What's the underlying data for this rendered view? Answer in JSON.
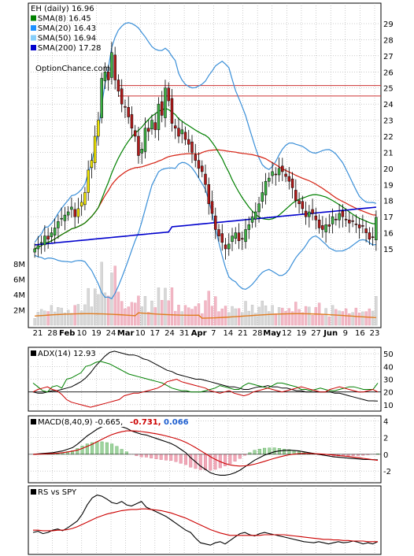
{
  "chart_data": [
    {
      "type": "candlestick",
      "title": "EH (daily) 16.96",
      "watermark": "OptionChance.com",
      "grid": true,
      "legend_position": "top-left",
      "ylim": [
        14,
        30
      ],
      "yticks": [
        "15",
        "16",
        "17",
        "18",
        "19",
        "20",
        "21",
        "22",
        "23",
        "24",
        "25",
        "26",
        "27",
        "28",
        "29"
      ],
      "xticks": [
        "21",
        "28",
        "Feb",
        "10",
        "19",
        "24",
        "Mar",
        "10",
        "17",
        "24",
        "31",
        "Apr",
        "7",
        "14",
        "21",
        "28",
        "May",
        "12",
        "19",
        "27",
        "Jun",
        "9",
        "16",
        "23"
      ],
      "reference_lines": [
        25.15,
        24.5
      ],
      "legend": [
        {
          "label": "EH (daily) 16.96",
          "color": "#000000"
        },
        {
          "label": "SMA(8) 16.45",
          "color": "#008000"
        },
        {
          "label": "SMA(20) 16.43",
          "color": "#1e90ff"
        },
        {
          "label": "SMA(50) 16.94",
          "color": "#87cefa"
        },
        {
          "label": "SMA(200) 17.28",
          "color": "#0000cd"
        }
      ],
      "close_approx": [
        15.0,
        15.2,
        15.4,
        15.8,
        15.6,
        16.0,
        16.3,
        16.7,
        16.9,
        17.1,
        17.3,
        17.6,
        17.0,
        17.5,
        17.9,
        18.5,
        19.9,
        20.5,
        22.0,
        23.0,
        25.6,
        26.0,
        25.5,
        27.2,
        25.5,
        24.8,
        24.0,
        23.8,
        23.2,
        22.5,
        22.0,
        20.8,
        21.2,
        22.5,
        22.3,
        23.0,
        22.4,
        24.0,
        23.3,
        25.0,
        24.2,
        22.8,
        22.5,
        22.0,
        22.4,
        21.8,
        21.5,
        21.0,
        20.5,
        20.0,
        19.8,
        19.0,
        17.8,
        17.2,
        16.2,
        15.8,
        15.4,
        15.0,
        15.3,
        15.8,
        16.0,
        15.5,
        15.6,
        16.2,
        16.5,
        17.0,
        17.3,
        17.8,
        18.5,
        19.2,
        19.4,
        19.8,
        19.6,
        20.0,
        19.8,
        19.5,
        19.2,
        18.8,
        18.0,
        17.8,
        17.5,
        17.0,
        17.3,
        17.2,
        16.8,
        16.3,
        16.2,
        16.5,
        16.4,
        17.0,
        16.8,
        17.2,
        17.0,
        16.8,
        16.6,
        16.7,
        16.5,
        16.3,
        16.4,
        16.0,
        15.6,
        15.7,
        16.96
      ],
      "volume_ylim": [
        0,
        9000000
      ],
      "volume_yticks": [
        "2M",
        "4M",
        "6M",
        "8M"
      ]
    },
    {
      "type": "line",
      "title": "ADX(14) 12.93",
      "ylim": [
        5,
        55
      ],
      "yticks": [
        "10",
        "20",
        "30",
        "40",
        "50"
      ],
      "reference_lines": [
        20
      ],
      "series": [
        {
          "name": "ADX(14)",
          "color": "#000000",
          "values": [
            20,
            19,
            19,
            20,
            21,
            21,
            22,
            23,
            24,
            26,
            28,
            31,
            35,
            40,
            44,
            48,
            51,
            52,
            51,
            50,
            49,
            49,
            48,
            46,
            45,
            43,
            41,
            39,
            37,
            36,
            34,
            33,
            32,
            31,
            30,
            30,
            29,
            28,
            27,
            26,
            25,
            24,
            24,
            23,
            22,
            22,
            23,
            24,
            24,
            25,
            24,
            24,
            23,
            23,
            22,
            21,
            21,
            20,
            20,
            20,
            20,
            20,
            20,
            19,
            19,
            18,
            17,
            16,
            15,
            14,
            13,
            13,
            12.93
          ]
        },
        {
          "color": "#008000",
          "values": [
            27,
            24,
            21,
            20,
            24,
            25,
            23,
            30,
            31,
            33,
            35,
            40,
            41,
            43,
            44,
            43,
            42,
            40,
            38,
            36,
            34,
            33,
            32,
            31,
            30,
            29,
            28,
            27,
            25,
            23,
            22,
            21,
            21,
            20,
            20,
            20,
            21,
            22,
            23,
            25,
            24,
            23,
            22,
            22,
            25,
            27,
            26,
            25,
            24,
            23,
            25,
            27,
            27,
            26,
            25,
            24,
            22,
            22,
            21,
            22,
            23,
            22,
            21,
            21,
            22,
            23,
            24,
            24,
            23,
            22,
            22,
            22,
            27
          ]
        },
        {
          "color": "#cc0000",
          "values": [
            20,
            22,
            23,
            24,
            22,
            21,
            18,
            14,
            12,
            11,
            10,
            9,
            8,
            9,
            10,
            11,
            12,
            13,
            14,
            17,
            18,
            19,
            19,
            20,
            21,
            22,
            23,
            25,
            28,
            29,
            30,
            28,
            27,
            26,
            25,
            24,
            23,
            21,
            20,
            19,
            20,
            21,
            19,
            18,
            17,
            18,
            20,
            21,
            22,
            23,
            22,
            21,
            20,
            21,
            22,
            23,
            24,
            23,
            22,
            21,
            20,
            20,
            22,
            23,
            24,
            23,
            22,
            21,
            20,
            20,
            21,
            22,
            20
          ]
        }
      ]
    },
    {
      "type": "line",
      "title": "MACD(8,40,9) -0.665,",
      "ylim": [
        -3.4,
        4.6
      ],
      "yticks": [
        "-2",
        "0",
        "2",
        "4"
      ],
      "reference_lines": [
        0
      ],
      "legend": [
        {
          "label": "MACD(8,40,9) -0.665,",
          "color": "#000000"
        },
        {
          "label": "-0.731,",
          "color": "#cc0000"
        },
        {
          "label": "0.066",
          "color": "#1f5fcf"
        }
      ],
      "series": [
        {
          "name": "MACD(8,40,9)",
          "color": "#000000",
          "values": [
            0.0,
            0.05,
            0.1,
            0.15,
            0.2,
            0.3,
            0.4,
            0.6,
            0.8,
            1.2,
            1.7,
            2.2,
            2.6,
            3.0,
            3.3,
            3.5,
            3.6,
            3.5,
            3.3,
            3.1,
            2.8,
            2.6,
            2.4,
            2.3,
            2.1,
            1.9,
            1.7,
            1.5,
            1.3,
            1.0,
            0.6,
            0.2,
            -0.4,
            -0.9,
            -1.4,
            -1.8,
            -2.2,
            -2.4,
            -2.5,
            -2.5,
            -2.4,
            -2.2,
            -1.9,
            -1.5,
            -1.1,
            -0.7,
            -0.4,
            -0.1,
            0.1,
            0.3,
            0.4,
            0.45,
            0.5,
            0.45,
            0.4,
            0.3,
            0.2,
            0.1,
            0.0,
            -0.1,
            -0.2,
            -0.3,
            -0.35,
            -0.4,
            -0.45,
            -0.5,
            -0.55,
            -0.6,
            -0.62,
            -0.64,
            -0.665
          ]
        },
        {
          "name": "Signal",
          "color": "#cc0000",
          "values": [
            0.0,
            0.02,
            0.04,
            0.07,
            0.1,
            0.14,
            0.2,
            0.28,
            0.38,
            0.5,
            0.7,
            0.95,
            1.2,
            1.5,
            1.8,
            2.1,
            2.35,
            2.55,
            2.7,
            2.8,
            2.8,
            2.78,
            2.72,
            2.64,
            2.55,
            2.45,
            2.33,
            2.2,
            2.05,
            1.88,
            1.68,
            1.44,
            1.14,
            0.8,
            0.44,
            0.08,
            -0.28,
            -0.6,
            -0.88,
            -1.1,
            -1.26,
            -1.36,
            -1.4,
            -1.38,
            -1.3,
            -1.18,
            -1.02,
            -0.84,
            -0.66,
            -0.48,
            -0.32,
            -0.18,
            -0.06,
            0.02,
            0.08,
            0.1,
            0.1,
            0.08,
            0.05,
            0.02,
            -0.03,
            -0.08,
            -0.14,
            -0.2,
            -0.26,
            -0.33,
            -0.4,
            -0.48,
            -0.56,
            -0.64,
            -0.731
          ]
        }
      ]
    },
    {
      "type": "line",
      "title": "RS vs SPY",
      "series": [
        {
          "name": "RS vs SPY",
          "color": "#000000",
          "values": [
            0.3,
            0.32,
            0.28,
            0.3,
            0.34,
            0.36,
            0.33,
            0.38,
            0.44,
            0.5,
            0.62,
            0.78,
            0.9,
            0.95,
            0.93,
            0.88,
            0.82,
            0.8,
            0.84,
            0.78,
            0.76,
            0.8,
            0.84,
            0.74,
            0.7,
            0.66,
            0.62,
            0.58,
            0.52,
            0.46,
            0.4,
            0.34,
            0.3,
            0.2,
            0.12,
            0.1,
            0.08,
            0.12,
            0.14,
            0.1,
            0.16,
            0.22,
            0.28,
            0.3,
            0.26,
            0.24,
            0.28,
            0.3,
            0.28,
            0.26,
            0.24,
            0.22,
            0.2,
            0.18,
            0.16,
            0.14,
            0.13,
            0.12,
            0.14,
            0.12,
            0.1,
            0.12,
            0.14,
            0.12,
            0.13,
            0.15,
            0.13,
            0.1,
            0.12,
            0.1,
            0.14
          ]
        },
        {
          "name": "MA",
          "color": "#cc0000",
          "values": [
            0.34,
            0.34,
            0.33,
            0.33,
            0.33,
            0.34,
            0.34,
            0.35,
            0.37,
            0.4,
            0.44,
            0.48,
            0.52,
            0.56,
            0.59,
            0.62,
            0.64,
            0.66,
            0.68,
            0.69,
            0.7,
            0.7,
            0.71,
            0.71,
            0.7,
            0.69,
            0.68,
            0.66,
            0.64,
            0.61,
            0.58,
            0.55,
            0.51,
            0.47,
            0.43,
            0.39,
            0.35,
            0.32,
            0.29,
            0.27,
            0.25,
            0.25,
            0.25,
            0.25,
            0.25,
            0.25,
            0.25,
            0.26,
            0.26,
            0.26,
            0.26,
            0.26,
            0.25,
            0.24,
            0.23,
            0.22,
            0.21,
            0.2,
            0.19,
            0.18,
            0.18,
            0.17,
            0.17,
            0.16,
            0.16,
            0.15,
            0.15,
            0.15,
            0.14,
            0.14,
            0.14
          ]
        }
      ]
    }
  ]
}
